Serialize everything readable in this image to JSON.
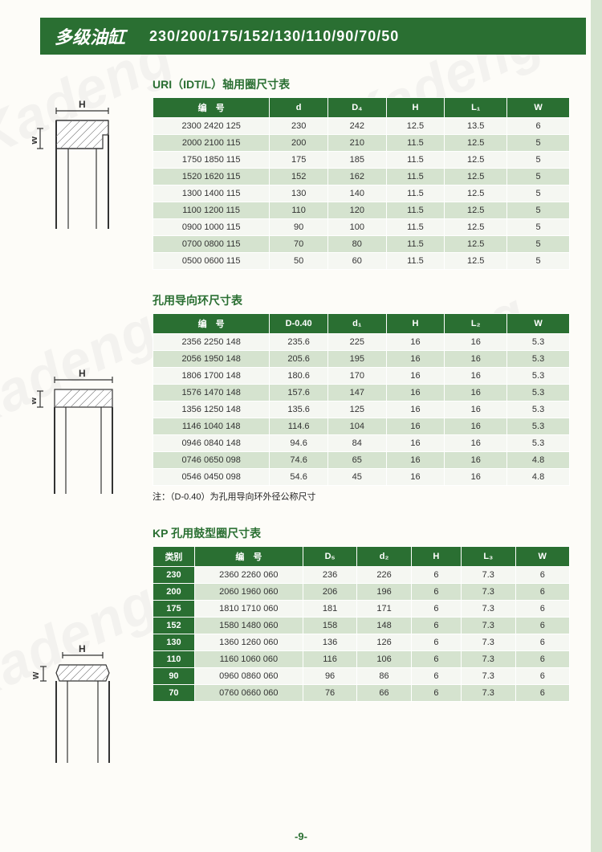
{
  "header": {
    "title": "多级油缸",
    "sizes": "230/200/175/152/130/110/90/70/50"
  },
  "page_number": "-9-",
  "colors": {
    "brand_green": "#2a6f32",
    "row_even": "#d5e3cf",
    "row_odd": "#f5f7f2",
    "page_bg": "#fdfcf8"
  },
  "table1": {
    "title": "URI（IDT/L）轴用圈尺寸表",
    "columns": [
      "编　号",
      "d",
      "D₄",
      "H",
      "L₁",
      "W"
    ],
    "col_widths": [
      "28%",
      "14%",
      "14%",
      "14%",
      "15%",
      "15%"
    ],
    "rows": [
      [
        "2300 2420 125",
        "230",
        "242",
        "12.5",
        "13.5",
        "6"
      ],
      [
        "2000 2100 115",
        "200",
        "210",
        "11.5",
        "12.5",
        "5"
      ],
      [
        "1750 1850 115",
        "175",
        "185",
        "11.5",
        "12.5",
        "5"
      ],
      [
        "1520 1620 115",
        "152",
        "162",
        "11.5",
        "12.5",
        "5"
      ],
      [
        "1300 1400 115",
        "130",
        "140",
        "11.5",
        "12.5",
        "5"
      ],
      [
        "1100 1200 115",
        "110",
        "120",
        "11.5",
        "12.5",
        "5"
      ],
      [
        "0900 1000 115",
        "90",
        "100",
        "11.5",
        "12.5",
        "5"
      ],
      [
        "0700 0800 115",
        "70",
        "80",
        "11.5",
        "12.5",
        "5"
      ],
      [
        "0500 0600 115",
        "50",
        "60",
        "11.5",
        "12.5",
        "5"
      ]
    ]
  },
  "table2": {
    "title": "孔用导向环尺寸表",
    "columns": [
      "编　号",
      "D-0.40",
      "d₁",
      "H",
      "L₂",
      "W"
    ],
    "col_widths": [
      "28%",
      "14%",
      "14%",
      "14%",
      "15%",
      "15%"
    ],
    "rows": [
      [
        "2356 2250 148",
        "235.6",
        "225",
        "16",
        "16",
        "5.3"
      ],
      [
        "2056 1950 148",
        "205.6",
        "195",
        "16",
        "16",
        "5.3"
      ],
      [
        "1806 1700 148",
        "180.6",
        "170",
        "16",
        "16",
        "5.3"
      ],
      [
        "1576 1470 148",
        "157.6",
        "147",
        "16",
        "16",
        "5.3"
      ],
      [
        "1356 1250 148",
        "135.6",
        "125",
        "16",
        "16",
        "5.3"
      ],
      [
        "1146 1040 148",
        "114.6",
        "104",
        "16",
        "16",
        "5.3"
      ],
      [
        "0946 0840 148",
        "94.6",
        "84",
        "16",
        "16",
        "5.3"
      ],
      [
        "0746 0650 098",
        "74.6",
        "65",
        "16",
        "16",
        "4.8"
      ],
      [
        "0546 0450 098",
        "54.6",
        "45",
        "16",
        "16",
        "4.8"
      ]
    ],
    "note": "注：（D-0.40）为孔用导向环外径公称尺寸"
  },
  "table3": {
    "title": "KP 孔用鼓型圈尺寸表",
    "columns": [
      "类别",
      "编　号",
      "D₅",
      "d₂",
      "H",
      "L₃",
      "W"
    ],
    "col_widths": [
      "10%",
      "26%",
      "13%",
      "13%",
      "12%",
      "13%",
      "13%"
    ],
    "rows": [
      [
        "230",
        "2360 2260 060",
        "236",
        "226",
        "6",
        "7.3",
        "6"
      ],
      [
        "200",
        "2060 1960 060",
        "206",
        "196",
        "6",
        "7.3",
        "6"
      ],
      [
        "175",
        "1810 1710 060",
        "181",
        "171",
        "6",
        "7.3",
        "6"
      ],
      [
        "152",
        "1580 1480 060",
        "158",
        "148",
        "6",
        "7.3",
        "6"
      ],
      [
        "130",
        "1360 1260 060",
        "136",
        "126",
        "6",
        "7.3",
        "6"
      ],
      [
        "110",
        "1160 1060 060",
        "116",
        "106",
        "6",
        "7.3",
        "6"
      ],
      [
        "90",
        "0960 0860 060",
        "96",
        "86",
        "6",
        "7.3",
        "6"
      ],
      [
        "70",
        "0760 0660 060",
        "76",
        "66",
        "6",
        "7.3",
        "6"
      ]
    ]
  },
  "diagrams": {
    "label_H": "H",
    "label_W": "W"
  },
  "watermark_text": "Kadeng"
}
